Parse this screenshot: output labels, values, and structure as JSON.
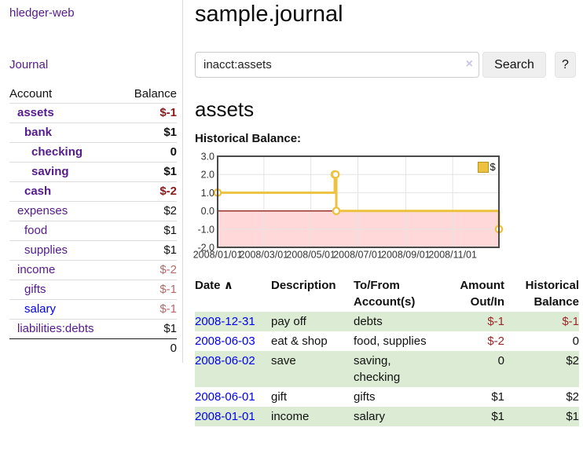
{
  "sidebar": {
    "app_title": "hledger-web",
    "nav": {
      "journal_label": "Journal"
    },
    "accounts_table": {
      "headers": {
        "account": "Account",
        "balance": "Balance"
      },
      "rows": [
        {
          "name": "assets",
          "balance": "$-1",
          "level": 0,
          "bold": true
        },
        {
          "name": "bank",
          "balance": "$1",
          "level": 1,
          "bold": true
        },
        {
          "name": "checking",
          "balance": "0",
          "level": 2,
          "bold": true
        },
        {
          "name": "saving",
          "balance": "$1",
          "level": 2,
          "bold": true
        },
        {
          "name": "cash",
          "balance": "$-2",
          "level": 1,
          "bold": true
        },
        {
          "name": "expenses",
          "balance": "$2",
          "level": 0
        },
        {
          "name": "food",
          "balance": "$1",
          "level": 1
        },
        {
          "name": "supplies",
          "balance": "$1",
          "level": 1
        },
        {
          "name": "income",
          "balance": "$-2",
          "level": 0
        },
        {
          "name": "gifts",
          "balance": "$-1",
          "level": 1
        },
        {
          "name": "salary",
          "balance": "$-1",
          "level": 1,
          "blue": true
        },
        {
          "name": "liabilities:debts",
          "balance": "$1",
          "level": 0
        }
      ],
      "total": "0"
    }
  },
  "main": {
    "title": "sample.journal",
    "search": {
      "value": "inacct:assets",
      "clear_icon": "×",
      "button_label": "Search",
      "help_label": "?"
    },
    "section_title": "assets",
    "chart_label": "Historical Balance:",
    "register": {
      "headers": {
        "date": "Date",
        "sort_icon": "∧",
        "description": "Description",
        "accounts": "To/From Account(s)",
        "amount": "Amount Out/In",
        "balance": "Historical Balance"
      },
      "rows": [
        {
          "date": "2008-12-31",
          "description": "pay off",
          "accounts": "debts",
          "amount": "$-1",
          "balance": "$-1"
        },
        {
          "date": "2008-06-03",
          "description": "eat & shop",
          "accounts": "food, supplies",
          "amount": "$-2",
          "balance": "0"
        },
        {
          "date": "2008-06-02",
          "description": "save",
          "accounts": "saving, checking",
          "amount": "0",
          "balance": "$2"
        },
        {
          "date": "2008-06-01",
          "description": "gift",
          "accounts": "gifts",
          "amount": "$1",
          "balance": "$2"
        },
        {
          "date": "2008-01-01",
          "description": "income",
          "accounts": "salary",
          "amount": "$1",
          "balance": "$1"
        }
      ]
    }
  },
  "chart_data": {
    "type": "line",
    "step": true,
    "title": "Historical Balance",
    "series": [
      {
        "name": "$",
        "color": "#EDC240",
        "points": [
          [
            "2008-01-01",
            1
          ],
          [
            "2008-06-01",
            2
          ],
          [
            "2008-06-02",
            2
          ],
          [
            "2008-06-03",
            0
          ],
          [
            "2008-12-31",
            -1
          ]
        ]
      }
    ],
    "xrange": [
      "2008-01-01",
      "2008-12-31"
    ],
    "ylim": [
      -2,
      3
    ],
    "yticks": [
      {
        "value": 3,
        "label": "3.0"
      },
      {
        "value": 2,
        "label": "2.0"
      },
      {
        "value": 1,
        "label": "1.0"
      },
      {
        "value": 0,
        "label": "0.0"
      },
      {
        "value": -1,
        "label": "-1.0"
      },
      {
        "value": -2,
        "label": "-2.0"
      }
    ],
    "xticks": [
      {
        "date": "2008-01-01",
        "label": "2008/01/01"
      },
      {
        "date": "2008-03-01",
        "label": "2008/03/01"
      },
      {
        "date": "2008-05-01",
        "label": "2008/05/01"
      },
      {
        "date": "2008-07-01",
        "label": "2008/07/01"
      },
      {
        "date": "2008-09-01",
        "label": "2008/09/01"
      },
      {
        "date": "2008-11-01",
        "label": "2008/11/01"
      }
    ],
    "legend_position": "top-right",
    "grid": true,
    "negative_region_fill": "#ffd9d9",
    "zero_line_color": "#8c1717",
    "grid_color": "#e3e3e3",
    "border_color": "#4a4a4a"
  },
  "colors": {
    "link_purple": "#551A8B",
    "link_blue": "#0000EE",
    "negative_strong": "#8b1a1a",
    "negative_soft": "#b26a6a",
    "row_stripe_green": "#dcecd4",
    "series_gold": "#EDC240"
  }
}
